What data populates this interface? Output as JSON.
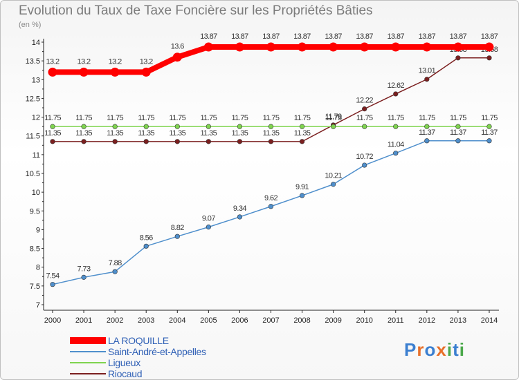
{
  "chart_data": {
    "type": "line",
    "title": "Evolution du Taux de Taxe Foncière sur les Propriétés Bâties",
    "ylabel": "(en %)",
    "xlabel": "",
    "x": [
      "2000",
      "2001",
      "2002",
      "2003",
      "2004",
      "2005",
      "2006",
      "2007",
      "2008",
      "2009",
      "2010",
      "2011",
      "2012",
      "2013",
      "2014"
    ],
    "ylim": [
      7,
      14
    ],
    "yticks": [
      "7",
      "7.5",
      "8",
      "8.5",
      "9",
      "9.5",
      "10",
      "10.5",
      "11",
      "11.5",
      "12",
      "12.5",
      "13",
      "13.5",
      "14"
    ],
    "grid": false,
    "legend_position": "bottom-left",
    "series": [
      {
        "name": "LA ROQUILLE",
        "color": "#ff0000",
        "values": [
          13.2,
          13.2,
          13.2,
          13.2,
          13.6,
          13.87,
          13.87,
          13.87,
          13.87,
          13.87,
          13.87,
          13.87,
          13.87,
          13.87,
          13.87
        ],
        "labels": [
          "13.2",
          "13.2",
          "13.2",
          "13.2",
          "13.6",
          "13.87",
          "13.87",
          "13.87",
          "13.87",
          "13.87",
          "13.87",
          "13.87",
          "13.87",
          "13.87",
          "13.87"
        ]
      },
      {
        "name": "Saint-André-et-Appelles",
        "color": "#4f8fcc",
        "values": [
          7.54,
          7.73,
          7.88,
          8.56,
          8.82,
          9.07,
          9.34,
          9.62,
          9.91,
          10.21,
          10.72,
          11.04,
          11.37,
          11.37,
          11.37
        ],
        "labels": [
          "7.54",
          "7.73",
          "7.88",
          "8.56",
          "8.82",
          "9.07",
          "9.34",
          "9.62",
          "9.91",
          "10.21",
          "10.72",
          "11.04",
          "11.37",
          "11.37",
          "11.37"
        ]
      },
      {
        "name": "Ligueux",
        "color": "#7fd44f",
        "values": [
          11.75,
          11.75,
          11.75,
          11.75,
          11.75,
          11.75,
          11.75,
          11.75,
          11.75,
          11.75,
          11.75,
          11.75,
          11.75,
          11.75,
          11.75
        ],
        "labels": [
          "11.75",
          "11.75",
          "11.75",
          "11.75",
          "11.75",
          "11.75",
          "11.75",
          "11.75",
          "11.75",
          "11.75",
          "11.75",
          "11.75",
          "11.75",
          "11.75",
          "11.75"
        ]
      },
      {
        "name": "Riocaud",
        "color": "#7b1f1f",
        "values": [
          11.35,
          11.35,
          11.35,
          11.35,
          11.35,
          11.35,
          11.35,
          11.35,
          11.35,
          11.79,
          12.22,
          12.62,
          13.01,
          13.58,
          13.58
        ],
        "labels": [
          "11.35",
          "11.35",
          "11.35",
          "11.35",
          "11.35",
          "11.35",
          "11.35",
          "11.35",
          "11.35",
          "11.79",
          "12.22",
          "12.62",
          "13.01",
          "13.58",
          "13.58"
        ]
      }
    ]
  },
  "legend": {
    "items": [
      "LA ROQUILLE",
      "Saint-André-et-Appelles",
      "Ligueux",
      "Riocaud"
    ],
    "colors": [
      "#ff0000",
      "#4f8fcc",
      "#7fd44f",
      "#7b1f1f"
    ]
  },
  "logo": {
    "letters": [
      "P",
      "r",
      "o",
      "x",
      "i",
      "t",
      "i"
    ],
    "colors": [
      "#3b7fd0",
      "#e8702a",
      "#3b7fd0",
      "#e8702a",
      "#4aa84a",
      "#3b7fd0",
      "#4aa84a"
    ]
  }
}
